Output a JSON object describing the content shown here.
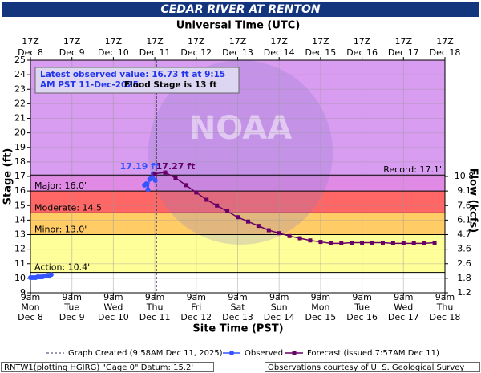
{
  "chart_data": {
    "type": "hydrograph",
    "title": "CEDAR RIVER AT RENTON",
    "x2_label": "Universal Time (UTC)",
    "xlabel": "Site Time (PST)",
    "ylabel": "Stage (ft)",
    "y2label": "Flow (kcfs)",
    "xlim": [
      "2025-12-08T09:00",
      "2025-12-18T09:00"
    ],
    "ylim": [
      9,
      25
    ],
    "yticks": [
      9,
      10,
      11,
      12,
      13,
      14,
      15,
      16,
      17,
      18,
      19,
      20,
      21,
      22,
      23,
      24,
      25
    ],
    "grid": true,
    "xticks": [
      {
        "value": "2025-12-08T09:00",
        "label": [
          "9am",
          "Mon",
          "Dec 8"
        ]
      },
      {
        "value": "2025-12-09T09:00",
        "label": [
          "9am",
          "Tue",
          "Dec 9"
        ]
      },
      {
        "value": "2025-12-10T09:00",
        "label": [
          "9am",
          "Wed",
          "Dec 10"
        ]
      },
      {
        "value": "2025-12-11T09:00",
        "label": [
          "9am",
          "Thu",
          "Dec 11"
        ]
      },
      {
        "value": "2025-12-12T09:00",
        "label": [
          "9am",
          "Fri",
          "Dec 12"
        ]
      },
      {
        "value": "2025-12-13T09:00",
        "label": [
          "9am",
          "Sat",
          "Dec 13"
        ]
      },
      {
        "value": "2025-12-14T09:00",
        "label": [
          "9am",
          "Sun",
          "Dec 14"
        ]
      },
      {
        "value": "2025-12-15T09:00",
        "label": [
          "9am",
          "Mon",
          "Dec 15"
        ]
      },
      {
        "value": "2025-12-16T09:00",
        "label": [
          "9am",
          "Tue",
          "Dec 16"
        ]
      },
      {
        "value": "2025-12-17T09:00",
        "label": [
          "9am",
          "Wed",
          "Dec 17"
        ]
      },
      {
        "value": "2025-12-18T09:00",
        "label": [
          "9am",
          "Thu",
          "Dec 18"
        ]
      }
    ],
    "x2ticks": [
      {
        "value": "2025-12-08T09:00",
        "label": [
          "17Z",
          "Dec 8"
        ]
      },
      {
        "value": "2025-12-09T09:00",
        "label": [
          "17Z",
          "Dec 9"
        ]
      },
      {
        "value": "2025-12-10T09:00",
        "label": [
          "17Z",
          "Dec 10"
        ]
      },
      {
        "value": "2025-12-11T09:00",
        "label": [
          "17Z",
          "Dec 11"
        ]
      },
      {
        "value": "2025-12-12T09:00",
        "label": [
          "17Z",
          "Dec 12"
        ]
      },
      {
        "value": "2025-12-13T09:00",
        "label": [
          "17Z",
          "Dec 13"
        ]
      },
      {
        "value": "2025-12-14T09:00",
        "label": [
          "17Z",
          "Dec 14"
        ]
      },
      {
        "value": "2025-12-15T09:00",
        "label": [
          "17Z",
          "Dec 15"
        ]
      },
      {
        "value": "2025-12-16T09:00",
        "label": [
          "17Z",
          "Dec 16"
        ]
      },
      {
        "value": "2025-12-17T09:00",
        "label": [
          "17Z",
          "Dec 17"
        ]
      },
      {
        "value": "2025-12-18T09:00",
        "label": [
          "17Z",
          "Dec 18"
        ]
      }
    ],
    "flow_ticks": [
      {
        "stage": 17,
        "flow": 10.8
      },
      {
        "stage": 16,
        "flow": 9.1
      },
      {
        "stage": 15,
        "flow": 7.6
      },
      {
        "stage": 14,
        "flow": 6.1
      },
      {
        "stage": 13,
        "flow": 4.7
      },
      {
        "stage": 12,
        "flow": 3.6
      },
      {
        "stage": 11,
        "flow": 2.6
      },
      {
        "stage": 10,
        "flow": 1.8
      },
      {
        "stage": 9,
        "flow": 1.2
      }
    ],
    "flood_categories": [
      {
        "label": "Action: 10.4'",
        "value": 10.4,
        "color": "#ffff99"
      },
      {
        "label": "Minor: 13.0'",
        "value": 13,
        "color": "#ffcc66"
      },
      {
        "label": "Moderate: 14.5'",
        "value": 14.5,
        "color": "#ff6666"
      },
      {
        "label": "Major: 16.0'",
        "value": 16,
        "color": "#e08ae6"
      },
      {
        "label": "Record: 17.1'",
        "value": 17.1,
        "color": "#d89cf0"
      }
    ],
    "info_text": "Latest observed value: 16.73 ft at 9:15 AM PST 11-Dec-2025.",
    "info_flood": "Flood Stage is 13 ft",
    "watermark": "NOAA",
    "graph_created": {
      "name": "Graph Created (9:58AM Dec 11, 2025)",
      "x": "2025-12-11T09:58"
    },
    "observed_peak_label": "17.19 ft",
    "forecast_peak_label": "17.27 ft",
    "series": [
      {
        "name": "Observed",
        "color": "#3355ff",
        "x": [
          "2025-12-08T09:00",
          "2025-12-08T10:00",
          "2025-12-08T11:00",
          "2025-12-08T12:00",
          "2025-12-08T13:00",
          "2025-12-08T14:00",
          "2025-12-08T15:00",
          "2025-12-08T16:00",
          "2025-12-08T17:00",
          "2025-12-08T18:00",
          "2025-12-08T19:00",
          "2025-12-08T20:00",
          "2025-12-08T21:00",
          "2025-12-08T22:00",
          "2025-12-11T03:00",
          "2025-12-11T04:00",
          "2025-12-11T05:00",
          "2025-12-11T06:00",
          "2025-12-11T07:00",
          "2025-12-11T08:00",
          "2025-12-11T09:15"
        ],
        "values": [
          10.05,
          10.05,
          10.05,
          10.05,
          10.1,
          10.1,
          10.1,
          10.1,
          10.15,
          10.15,
          10.2,
          10.2,
          10.25,
          null,
          16.4,
          16.5,
          16.1,
          16.8,
          16.9,
          17.19,
          16.73
        ]
      },
      {
        "name": "Forecast (issued 7:57AM Dec 11)",
        "color": "#660066",
        "x": [
          "2025-12-11T09:00",
          "2025-12-11T15:00",
          "2025-12-11T21:00",
          "2025-12-12T03:00",
          "2025-12-12T09:00",
          "2025-12-12T15:00",
          "2025-12-12T21:00",
          "2025-12-13T03:00",
          "2025-12-13T09:00",
          "2025-12-13T15:00",
          "2025-12-13T21:00",
          "2025-12-14T03:00",
          "2025-12-14T09:00",
          "2025-12-14T15:00",
          "2025-12-14T21:00",
          "2025-12-15T03:00",
          "2025-12-15T09:00",
          "2025-12-15T15:00",
          "2025-12-15T21:00",
          "2025-12-16T03:00",
          "2025-12-16T09:00",
          "2025-12-16T15:00",
          "2025-12-16T21:00",
          "2025-12-17T03:00",
          "2025-12-17T09:00",
          "2025-12-17T15:00",
          "2025-12-17T21:00",
          "2025-12-18T03:00"
        ],
        "values": [
          17.19,
          17.27,
          16.9,
          16.4,
          15.9,
          15.4,
          15.0,
          14.6,
          14.2,
          13.9,
          13.6,
          13.3,
          13.1,
          12.9,
          12.75,
          12.6,
          12.5,
          12.4,
          12.4,
          12.45,
          12.45,
          12.45,
          12.45,
          12.4,
          12.4,
          12.4,
          12.4,
          12.45
        ]
      }
    ],
    "footer_left": "RNTW1(plotting HGIRG) \"Gage 0\" Datum: 15.2'",
    "footer_right": "Observations courtesy of U. S. Geological Survey"
  }
}
